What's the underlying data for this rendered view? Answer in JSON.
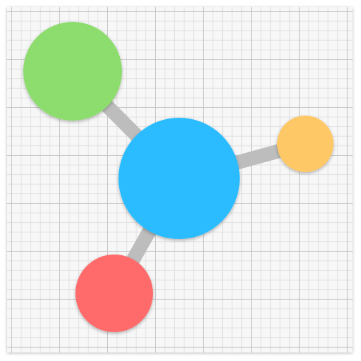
{
  "icon": {
    "colors": {
      "background": "#f7f7f7",
      "grid_major": "#c9c9c9",
      "grid_minor": "#e2e2e2",
      "edge": "#bdbdbd",
      "center_node": "#2bbcff",
      "green_node": "#8ddd6e",
      "orange_node": "#ffc866",
      "red_node": "#ff6b6b"
    },
    "nodes": [
      {
        "name": "center-node",
        "color_key": "center_node"
      },
      {
        "name": "green-node",
        "color_key": "green_node"
      },
      {
        "name": "orange-node",
        "color_key": "orange_node"
      },
      {
        "name": "red-node",
        "color_key": "red_node"
      }
    ],
    "edges": [
      {
        "name": "edge-center-green",
        "from": "center-node",
        "to": "green-node"
      },
      {
        "name": "edge-center-orange",
        "from": "center-node",
        "to": "orange-node"
      },
      {
        "name": "edge-center-red",
        "from": "center-node",
        "to": "red-node"
      }
    ]
  }
}
